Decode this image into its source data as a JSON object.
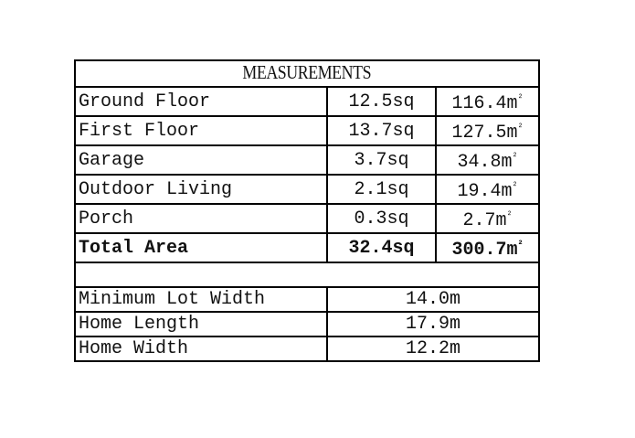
{
  "title": "MEASUREMENTS",
  "area_rows": [
    {
      "label": "Ground Floor",
      "sq": "12.5sq",
      "m2": "116.4m"
    },
    {
      "label": "First Floor",
      "sq": "13.7sq",
      "m2": "127.5m"
    },
    {
      "label": "Garage",
      "sq": "3.7sq",
      "m2": "34.8m"
    },
    {
      "label": "Outdoor Living",
      "sq": "2.1sq",
      "m2": "19.4m"
    },
    {
      "label": "Porch",
      "sq": "0.3sq",
      "m2": "2.7m"
    }
  ],
  "total": {
    "label": "Total Area",
    "sq": "32.4sq",
    "m2": "300.7m"
  },
  "superscript": "²",
  "dimension_rows": [
    {
      "label": "Minimum Lot Width",
      "value": "14.0m"
    },
    {
      "label": "Home Length",
      "value": "17.9m"
    },
    {
      "label": "Home Width",
      "value": "12.2m"
    }
  ]
}
